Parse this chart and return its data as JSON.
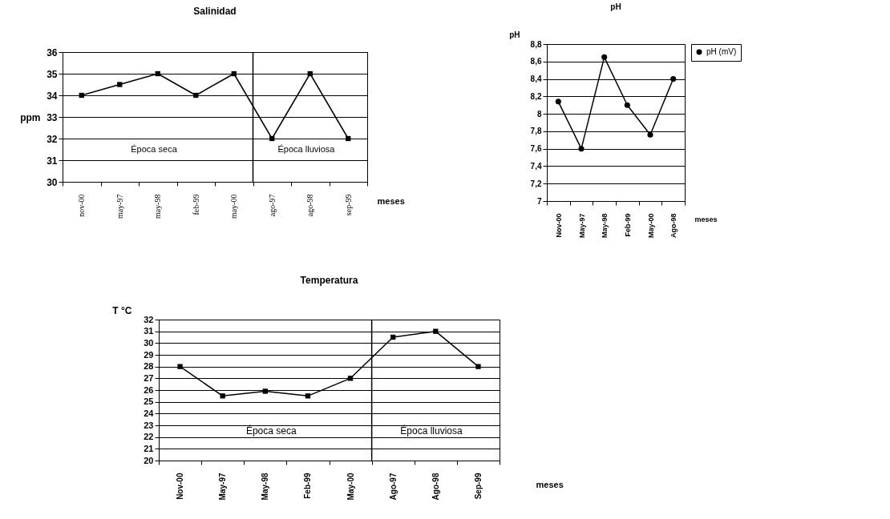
{
  "chart_data": [
    {
      "type": "line",
      "title": "Salinidad",
      "xlabel": "meses",
      "ylabel": "ppm",
      "categories": [
        "nov-00",
        "may-97",
        "may-98",
        "feb-99",
        "may-00",
        "ago-97",
        "ago-98",
        "sep-99"
      ],
      "series": [
        {
          "color": "#000000",
          "values": [
            34,
            34.5,
            35,
            34,
            35,
            32,
            35,
            32
          ]
        }
      ],
      "ylim": [
        30,
        36
      ],
      "yticks": [
        30,
        31,
        32,
        33,
        34,
        35,
        36
      ],
      "grid": "y",
      "marker": "square",
      "ref_lines": [
        {
          "axis": "x",
          "value": "ago-97"
        }
      ],
      "annotations": [
        "Época seca",
        "Época lluviosa"
      ]
    },
    {
      "type": "line",
      "title": "pH",
      "xlabel": "meses",
      "ylabel": "pH",
      "categories": [
        "Nov-00",
        "May-97",
        "May-98",
        "Feb-99",
        "May-00",
        "Ago-98"
      ],
      "series": [
        {
          "name": "pH (mV)",
          "color": "#000000",
          "values": [
            8.14,
            7.6,
            8.65,
            8.1,
            7.76,
            8.4
          ]
        }
      ],
      "ylim": [
        7,
        8.8
      ],
      "yticks": [
        7,
        {
          "value": 7.2,
          "label": "7,2"
        },
        {
          "value": 7.4,
          "label": "7,4"
        },
        {
          "value": 7.6,
          "label": "7,6"
        },
        {
          "value": 7.8,
          "label": "7,8"
        },
        8,
        {
          "value": 8.2,
          "label": "8,2"
        },
        {
          "value": 8.4,
          "label": "8,4"
        },
        {
          "value": 8.6,
          "label": "8,6"
        },
        {
          "value": 8.8,
          "label": "8,8"
        }
      ],
      "grid": "y",
      "marker": "circle",
      "legend": "right"
    },
    {
      "type": "line",
      "title": "Temperatura",
      "xlabel": "meses",
      "ylabel": "T °C",
      "categories": [
        "Nov-00",
        "May-97",
        "May-98",
        "Feb-99",
        "May-00",
        "Ago-97",
        "Ago-98",
        "Sep-99"
      ],
      "series": [
        {
          "color": "#000000",
          "values": [
            28,
            25.5,
            25.9,
            25.5,
            27,
            30.5,
            31,
            28
          ]
        }
      ],
      "ylim": [
        20,
        32
      ],
      "yticks": [
        20,
        21,
        22,
        23,
        24,
        25,
        26,
        27,
        28,
        29,
        30,
        31,
        32
      ],
      "grid": "y",
      "marker": "square",
      "ref_lines": [
        {
          "axis": "x",
          "value": "Ago-97"
        }
      ],
      "annotations": [
        "Época seca",
        "Época lluviosa"
      ]
    }
  ]
}
